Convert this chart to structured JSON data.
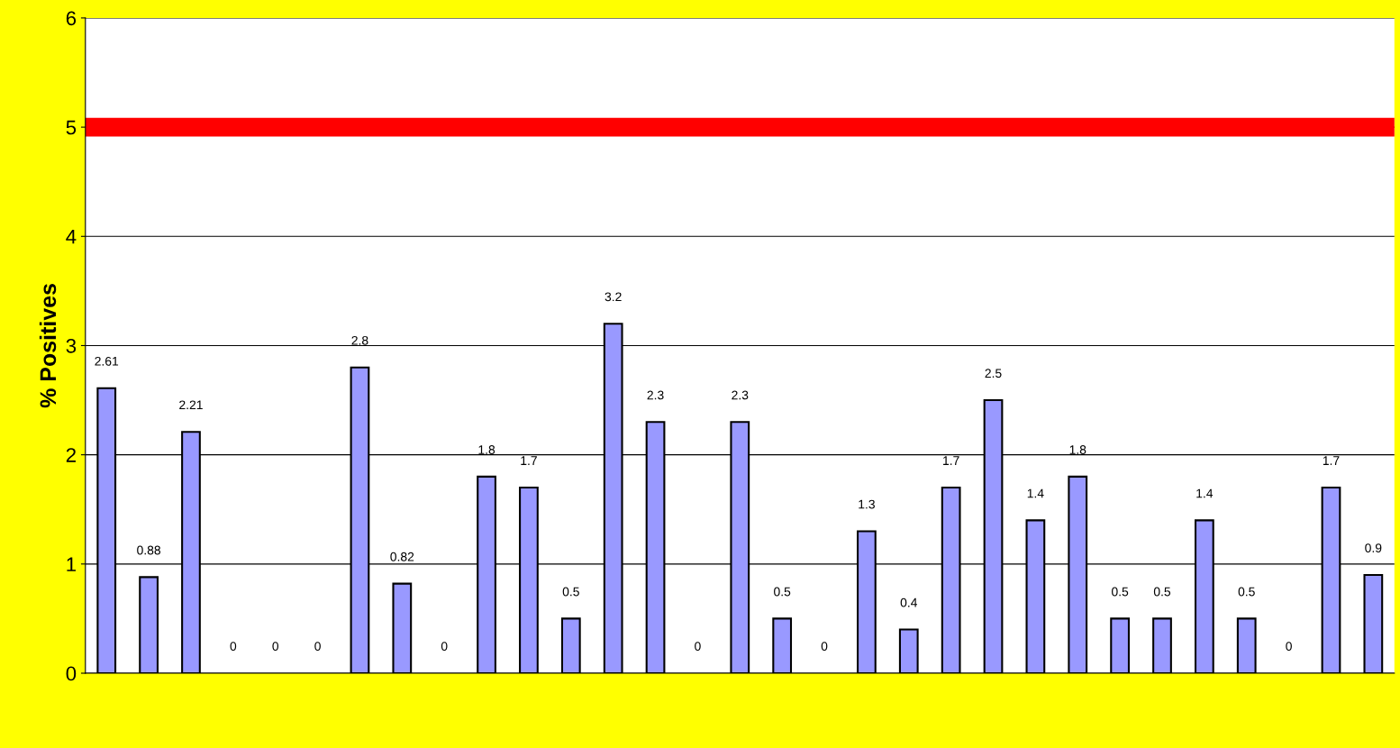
{
  "chart_data": {
    "type": "bar",
    "ylabel": "% Positives",
    "categories": [
      null,
      null,
      null,
      null,
      null,
      null,
      null,
      null,
      null,
      null,
      null,
      null,
      null,
      null,
      null,
      null,
      null,
      null,
      null,
      null,
      null,
      null,
      null,
      null,
      null,
      null,
      null,
      null,
      null,
      null,
      null
    ],
    "values": [
      2.61,
      0.88,
      2.21,
      0,
      0,
      0,
      2.8,
      0.82,
      0,
      1.8,
      1.7,
      0.5,
      3.2,
      2.3,
      0,
      2.3,
      0.5,
      0,
      1.3,
      0.4,
      1.7,
      2.5,
      1.4,
      1.8,
      0.5,
      0.5,
      1.4,
      0.5,
      0,
      1.7,
      0.9
    ],
    "color": "#9999ff",
    "data_labels": true,
    "ylim": [
      0,
      6
    ],
    "yticks": [
      0,
      1,
      2,
      3,
      4,
      5,
      6
    ],
    "grid": "y",
    "ref_lines": [
      {
        "axis": "y",
        "value": 5,
        "color": "#ff0000"
      }
    ]
  }
}
